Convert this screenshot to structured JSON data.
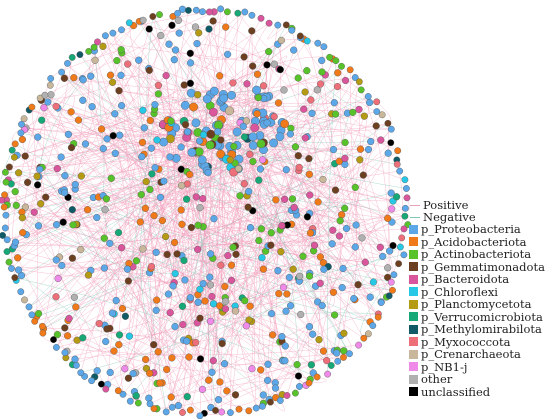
{
  "legend": {
    "edges": [
      {
        "label": "Positive",
        "color": "#f29bb9"
      },
      {
        "label": "Negative",
        "color": "#7fc7b5"
      }
    ],
    "phyla": [
      {
        "label": "p_Proteobacteria",
        "color": "#5ba7e8"
      },
      {
        "label": "p_Acidobacteriota",
        "color": "#f07a1a"
      },
      {
        "label": "p_Actinobacteriota",
        "color": "#58c22a"
      },
      {
        "label": "p_Gemmatimonadota",
        "color": "#6b3f1f"
      },
      {
        "label": "p_Bacteroidota",
        "color": "#d9559c"
      },
      {
        "label": "p_Chloroflexi",
        "color": "#27c7e6"
      },
      {
        "label": "p_Planctomycetota",
        "color": "#b59a14"
      },
      {
        "label": "p_Verrucomicrobiota",
        "color": "#16a876"
      },
      {
        "label": "p_Methylomirabilota",
        "color": "#0f5a66"
      },
      {
        "label": "p_Myxococcota",
        "color": "#ec6f7a"
      },
      {
        "label": "p_Crenarchaeota",
        "color": "#c8b79a"
      },
      {
        "label": "p_NB1-j",
        "color": "#f08ae8"
      },
      {
        "label": "other",
        "color": "#b0b0b0"
      },
      {
        "label": "unclassified",
        "color": "#000000"
      }
    ]
  }
}
